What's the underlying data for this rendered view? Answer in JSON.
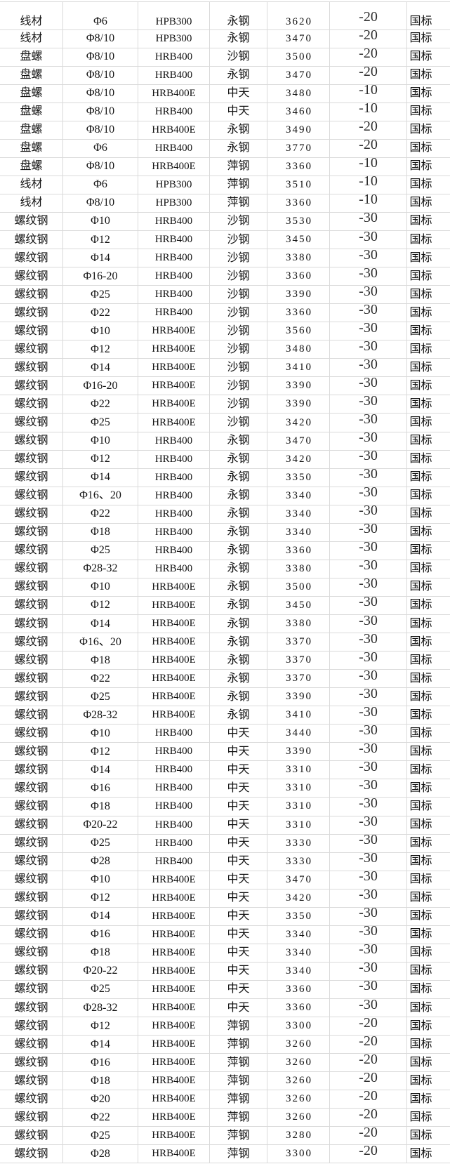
{
  "table": {
    "rows": [
      [
        "线材",
        "Φ6",
        "HPB300",
        "永钢",
        "3620",
        "-20",
        "国标"
      ],
      [
        "线材",
        "Φ8/10",
        "HPB300",
        "永钢",
        "3470",
        "-20",
        "国标"
      ],
      [
        "盘螺",
        "Φ8/10",
        "HRB400",
        "沙钢",
        "3500",
        "-20",
        "国标"
      ],
      [
        "盘螺",
        "Φ8/10",
        "HRB400",
        "永钢",
        "3470",
        "-20",
        "国标"
      ],
      [
        "盘螺",
        "Φ8/10",
        "HRB400E",
        "中天",
        "3480",
        "-10",
        "国标"
      ],
      [
        "盘螺",
        "Φ8/10",
        "HRB400",
        "中天",
        "3460",
        "-10",
        "国标"
      ],
      [
        "盘螺",
        "Φ8/10",
        "HRB400E",
        "永钢",
        "3490",
        "-20",
        "国标"
      ],
      [
        "盘螺",
        "Φ6",
        "HRB400",
        "永钢",
        "3770",
        "-20",
        "国标"
      ],
      [
        "盘螺",
        "Φ8/10",
        "HRB400E",
        "萍钢",
        "3360",
        "-10",
        "国标"
      ],
      [
        "线材",
        "Φ6",
        "HPB300",
        "萍钢",
        "3510",
        "-10",
        "国标"
      ],
      [
        "线材",
        "Φ8/10",
        "HPB300",
        "萍钢",
        "3360",
        "-10",
        "国标"
      ],
      [
        "螺纹钢",
        "Φ10",
        "HRB400",
        "沙钢",
        "3530",
        "-30",
        "国标"
      ],
      [
        "螺纹钢",
        "Φ12",
        "HRB400",
        "沙钢",
        "3450",
        "-30",
        "国标"
      ],
      [
        "螺纹钢",
        "Φ14",
        "HRB400",
        "沙钢",
        "3380",
        "-30",
        "国标"
      ],
      [
        "螺纹钢",
        "Φ16-20",
        "HRB400",
        "沙钢",
        "3360",
        "-30",
        "国标"
      ],
      [
        "螺纹钢",
        "Φ25",
        "HRB400",
        "沙钢",
        "3390",
        "-30",
        "国标"
      ],
      [
        "螺纹钢",
        "Φ22",
        "HRB400",
        "沙钢",
        "3360",
        "-30",
        "国标"
      ],
      [
        "螺纹钢",
        "Φ10",
        "HRB400E",
        "沙钢",
        "3560",
        "-30",
        "国标"
      ],
      [
        "螺纹钢",
        "Φ12",
        "HRB400E",
        "沙钢",
        "3480",
        "-30",
        "国标"
      ],
      [
        "螺纹钢",
        "Φ14",
        "HRB400E",
        "沙钢",
        "3410",
        "-30",
        "国标"
      ],
      [
        "螺纹钢",
        "Φ16-20",
        "HRB400E",
        "沙钢",
        "3390",
        "-30",
        "国标"
      ],
      [
        "螺纹钢",
        "Φ22",
        "HRB400E",
        "沙钢",
        "3390",
        "-30",
        "国标"
      ],
      [
        "螺纹钢",
        "Φ25",
        "HRB400E",
        "沙钢",
        "3420",
        "-30",
        "国标"
      ],
      [
        "螺纹钢",
        "Φ10",
        "HRB400",
        "永钢",
        "3470",
        "-30",
        "国标"
      ],
      [
        "螺纹钢",
        "Φ12",
        "HRB400",
        "永钢",
        "3420",
        "-30",
        "国标"
      ],
      [
        "螺纹钢",
        "Φ14",
        "HRB400",
        "永钢",
        "3350",
        "-30",
        "国标"
      ],
      [
        "螺纹钢",
        "Φ16、20",
        "HRB400",
        "永钢",
        "3340",
        "-30",
        "国标"
      ],
      [
        "螺纹钢",
        "Φ22",
        "HRB400",
        "永钢",
        "3340",
        "-30",
        "国标"
      ],
      [
        "螺纹钢",
        "Φ18",
        "HRB400",
        "永钢",
        "3340",
        "-30",
        "国标"
      ],
      [
        "螺纹钢",
        "Φ25",
        "HRB400",
        "永钢",
        "3360",
        "-30",
        "国标"
      ],
      [
        "螺纹钢",
        "Φ28-32",
        "HRB400",
        "永钢",
        "3380",
        "-30",
        "国标"
      ],
      [
        "螺纹钢",
        "Φ10",
        "HRB400E",
        "永钢",
        "3500",
        "-30",
        "国标"
      ],
      [
        "螺纹钢",
        "Φ12",
        "HRB400E",
        "永钢",
        "3450",
        "-30",
        "国标"
      ],
      [
        "螺纹钢",
        "Φ14",
        "HRB400E",
        "永钢",
        "3380",
        "-30",
        "国标"
      ],
      [
        "螺纹钢",
        "Φ16、20",
        "HRB400E",
        "永钢",
        "3370",
        "-30",
        "国标"
      ],
      [
        "螺纹钢",
        "Φ18",
        "HRB400E",
        "永钢",
        "3370",
        "-30",
        "国标"
      ],
      [
        "螺纹钢",
        "Φ22",
        "HRB400E",
        "永钢",
        "3370",
        "-30",
        "国标"
      ],
      [
        "螺纹钢",
        "Φ25",
        "HRB400E",
        "永钢",
        "3390",
        "-30",
        "国标"
      ],
      [
        "螺纹钢",
        "Φ28-32",
        "HRB400E",
        "永钢",
        "3410",
        "-30",
        "国标"
      ],
      [
        "螺纹钢",
        "Φ10",
        "HRB400",
        "中天",
        "3440",
        "-30",
        "国标"
      ],
      [
        "螺纹钢",
        "Φ12",
        "HRB400",
        "中天",
        "3390",
        "-30",
        "国标"
      ],
      [
        "螺纹钢",
        "Φ14",
        "HRB400",
        "中天",
        "3310",
        "-30",
        "国标"
      ],
      [
        "螺纹钢",
        "Φ16",
        "HRB400",
        "中天",
        "3310",
        "-30",
        "国标"
      ],
      [
        "螺纹钢",
        "Φ18",
        "HRB400",
        "中天",
        "3310",
        "-30",
        "国标"
      ],
      [
        "螺纹钢",
        "Φ20-22",
        "HRB400",
        "中天",
        "3310",
        "-30",
        "国标"
      ],
      [
        "螺纹钢",
        "Φ25",
        "HRB400",
        "中天",
        "3330",
        "-30",
        "国标"
      ],
      [
        "螺纹钢",
        "Φ28",
        "HRB400",
        "中天",
        "3330",
        "-30",
        "国标"
      ],
      [
        "螺纹钢",
        "Φ10",
        "HRB400E",
        "中天",
        "3470",
        "-30",
        "国标"
      ],
      [
        "螺纹钢",
        "Φ12",
        "HRB400E",
        "中天",
        "3420",
        "-30",
        "国标"
      ],
      [
        "螺纹钢",
        "Φ14",
        "HRB400E",
        "中天",
        "3350",
        "-30",
        "国标"
      ],
      [
        "螺纹钢",
        "Φ16",
        "HRB400E",
        "中天",
        "3340",
        "-30",
        "国标"
      ],
      [
        "螺纹钢",
        "Φ18",
        "HRB400E",
        "中天",
        "3340",
        "-30",
        "国标"
      ],
      [
        "螺纹钢",
        "Φ20-22",
        "HRB400E",
        "中天",
        "3340",
        "-30",
        "国标"
      ],
      [
        "螺纹钢",
        "Φ25",
        "HRB400E",
        "中天",
        "3360",
        "-30",
        "国标"
      ],
      [
        "螺纹钢",
        "Φ28-32",
        "HRB400E",
        "中天",
        "3360",
        "-30",
        "国标"
      ],
      [
        "螺纹钢",
        "Φ12",
        "HRB400E",
        "萍钢",
        "3300",
        "-20",
        "国标"
      ],
      [
        "螺纹钢",
        "Φ14",
        "HRB400E",
        "萍钢",
        "3260",
        "-20",
        "国标"
      ],
      [
        "螺纹钢",
        "Φ16",
        "HRB400E",
        "萍钢",
        "3260",
        "-20",
        "国标"
      ],
      [
        "螺纹钢",
        "Φ18",
        "HRB400E",
        "萍钢",
        "3260",
        "-20",
        "国标"
      ],
      [
        "螺纹钢",
        "Φ20",
        "HRB400E",
        "萍钢",
        "3260",
        "-20",
        "国标"
      ],
      [
        "螺纹钢",
        "Φ22",
        "HRB400E",
        "萍钢",
        "3260",
        "-20",
        "国标"
      ],
      [
        "螺纹钢",
        "Φ25",
        "HRB400E",
        "萍钢",
        "3280",
        "-20",
        "国标"
      ],
      [
        "螺纹钢",
        "Φ28",
        "HRB400E",
        "萍钢",
        "3300",
        "-20",
        "国标"
      ]
    ]
  },
  "colors": {
    "background": "#ffffff",
    "gridline": "#dadada",
    "text": "#111111",
    "change_text": "#2e2e2e"
  }
}
